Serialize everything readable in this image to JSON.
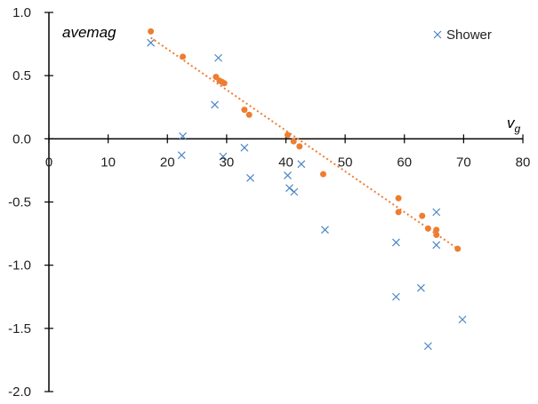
{
  "chart_data": {
    "type": "scatter",
    "title": "",
    "xlabel": "v",
    "xlabel_sub": "g",
    "ylabel": "avemag",
    "xlim": [
      0,
      80
    ],
    "ylim": [
      -2.0,
      1.0
    ],
    "x_ticks": [
      "0",
      "10",
      "20",
      "30",
      "40",
      "50",
      "60",
      "70",
      "80"
    ],
    "y_ticks": [
      "1.0",
      "0.5",
      "0.0",
      "-0.5",
      "-1.0",
      "-1.5",
      "-2.0"
    ],
    "grid": false,
    "legend_position": "top-right",
    "series": [
      {
        "name": "Shower",
        "marker": "x",
        "color": "#4a86c5",
        "points": [
          [
            17.2,
            0.76
          ],
          [
            22.6,
            0.02
          ],
          [
            22.4,
            -0.13
          ],
          [
            28.0,
            0.27
          ],
          [
            28.6,
            0.64
          ],
          [
            29.4,
            -0.14
          ],
          [
            33.0,
            -0.07
          ],
          [
            34.0,
            -0.31
          ],
          [
            40.3,
            -0.29
          ],
          [
            40.6,
            -0.39
          ],
          [
            41.4,
            -0.42
          ],
          [
            42.6,
            -0.2
          ],
          [
            46.6,
            -0.72
          ],
          [
            58.6,
            -0.82
          ],
          [
            58.6,
            -1.25
          ],
          [
            62.8,
            -1.18
          ],
          [
            64.0,
            -1.64
          ],
          [
            65.4,
            -0.58
          ],
          [
            65.4,
            -0.84
          ],
          [
            69.8,
            -1.43
          ]
        ]
      },
      {
        "marker": "circle",
        "color": "#ed7d31",
        "points": [
          [
            17.2,
            0.85
          ],
          [
            22.6,
            0.65
          ],
          [
            28.2,
            0.49
          ],
          [
            28.8,
            0.46
          ],
          [
            29.2,
            0.45
          ],
          [
            29.6,
            0.44
          ],
          [
            33.0,
            0.23
          ],
          [
            33.8,
            0.19
          ],
          [
            40.3,
            0.03
          ],
          [
            41.3,
            -0.02
          ],
          [
            42.3,
            -0.06
          ],
          [
            46.3,
            -0.28
          ],
          [
            59.0,
            -0.47
          ],
          [
            59.0,
            -0.58
          ],
          [
            63.0,
            -0.61
          ],
          [
            64.0,
            -0.71
          ],
          [
            65.4,
            -0.72
          ],
          [
            65.4,
            -0.76
          ],
          [
            69.0,
            -0.87
          ]
        ]
      }
    ],
    "trendline": {
      "color": "#ed7d31",
      "style": "dotted",
      "x": [
        17.2,
        69.0
      ],
      "y": [
        0.8,
        -0.87
      ]
    }
  }
}
